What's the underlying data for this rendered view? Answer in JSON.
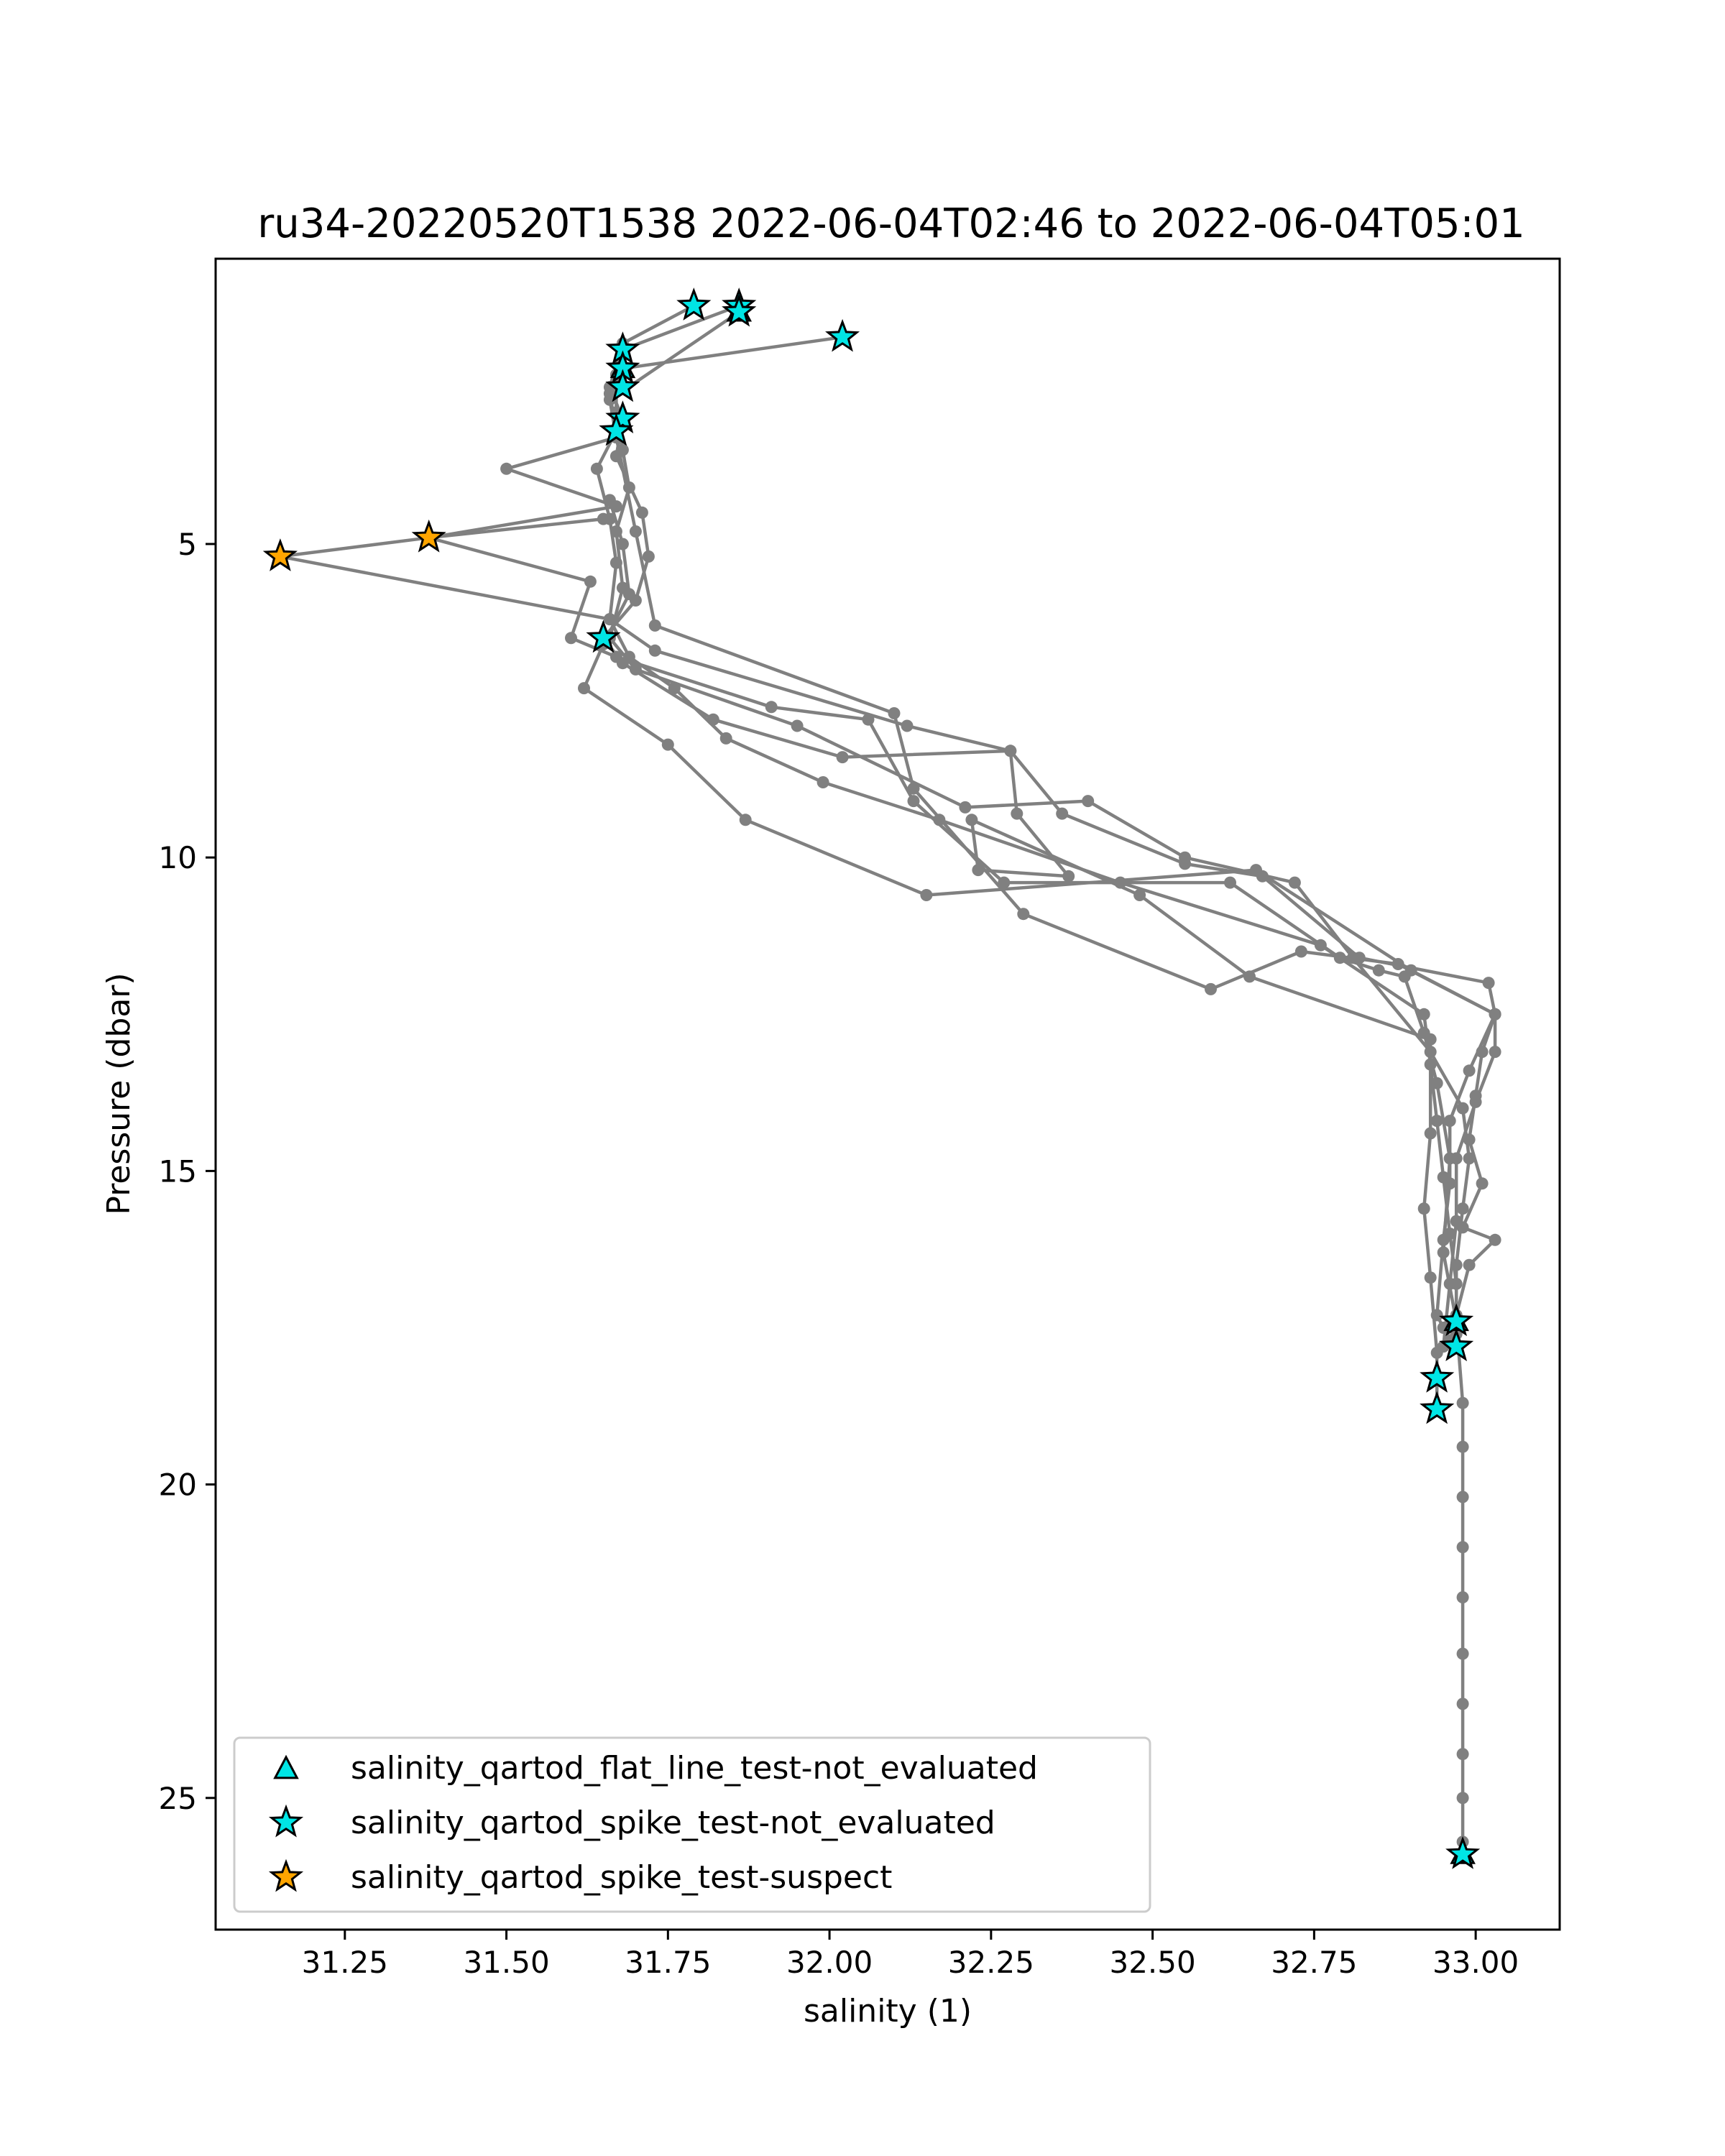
{
  "chart_data": {
    "type": "line",
    "title": "ru34-20220520T1538 2022-06-04T02:46 to 2022-06-04T05:01",
    "xlabel": "salinity (1)",
    "ylabel": "Pressure (dbar)",
    "xlim": [
      31.05,
      33.13
    ],
    "ylim": [
      27.1,
      0.45
    ],
    "y_inverted": true,
    "x_ticks": [
      31.25,
      31.5,
      31.75,
      32.0,
      32.25,
      32.5,
      32.75,
      33.0
    ],
    "x_tick_labels": [
      "31.25",
      "31.50",
      "31.75",
      "32.00",
      "32.25",
      "32.50",
      "32.75",
      "33.00"
    ],
    "y_ticks": [
      5,
      10,
      15,
      20,
      25
    ],
    "y_tick_labels": [
      "5",
      "10",
      "15",
      "20",
      "25"
    ],
    "grid": false,
    "legend_position": "lower-left",
    "line_color": "#808080",
    "series": [
      {
        "name": "",
        "color": "#808080",
        "points": [
          [
            32.02,
            1.7
          ],
          [
            31.68,
            2.2
          ],
          [
            31.66,
            2.6
          ],
          [
            31.67,
            3.2
          ],
          [
            31.64,
            3.8
          ],
          [
            31.66,
            4.6
          ],
          [
            31.67,
            5.3
          ],
          [
            31.66,
            6.2
          ],
          [
            31.69,
            6.8
          ],
          [
            31.76,
            7.3
          ],
          [
            31.84,
            8.1
          ],
          [
            31.99,
            8.8
          ],
          [
            32.17,
            9.4
          ],
          [
            32.45,
            10.4
          ],
          [
            32.76,
            11.4
          ],
          [
            32.92,
            12.5
          ],
          [
            32.93,
            13.3
          ],
          [
            32.94,
            14.2
          ],
          [
            32.95,
            15.1
          ],
          [
            32.96,
            16.0
          ],
          [
            32.97,
            16.8
          ],
          [
            32.97,
            17.8
          ]
        ]
      },
      {
        "name": "",
        "color": "#808080",
        "points": [
          [
            31.86,
            1.2
          ],
          [
            31.68,
            1.9
          ],
          [
            31.67,
            2.3
          ],
          [
            31.67,
            2.9
          ],
          [
            31.68,
            3.5
          ],
          [
            31.69,
            4.1
          ],
          [
            31.67,
            4.8
          ],
          [
            31.68,
            5.7
          ],
          [
            31.66,
            6.5
          ],
          [
            31.7,
            7.0
          ],
          [
            31.95,
            7.9
          ],
          [
            32.21,
            9.2
          ],
          [
            32.4,
            9.1
          ],
          [
            32.55,
            10.0
          ],
          [
            32.72,
            10.4
          ],
          [
            32.81,
            11.6
          ],
          [
            32.93,
            13.1
          ],
          [
            32.98,
            14.0
          ],
          [
            32.99,
            14.8
          ],
          [
            32.98,
            15.6
          ],
          [
            32.97,
            16.5
          ],
          [
            32.97,
            17.5
          ],
          [
            32.96,
            17.7
          ]
        ]
      },
      {
        "name": "",
        "color": "#808080",
        "points": [
          [
            31.79,
            1.2
          ],
          [
            31.68,
            1.8
          ],
          [
            31.66,
            2.5
          ],
          [
            31.68,
            3.0
          ],
          [
            31.67,
            3.6
          ],
          [
            31.71,
            4.5
          ],
          [
            31.72,
            5.2
          ],
          [
            31.7,
            5.9
          ],
          [
            31.65,
            6.5
          ],
          [
            31.68,
            6.9
          ],
          [
            31.82,
            7.8
          ],
          [
            32.02,
            8.4
          ],
          [
            32.28,
            8.3
          ],
          [
            32.29,
            9.3
          ],
          [
            32.37,
            10.3
          ],
          [
            32.23,
            10.2
          ],
          [
            32.22,
            9.4
          ],
          [
            32.48,
            10.6
          ],
          [
            32.65,
            11.9
          ],
          [
            32.93,
            12.9
          ],
          [
            32.93,
            14.4
          ],
          [
            32.92,
            15.6
          ],
          [
            32.93,
            16.7
          ],
          [
            32.94,
            17.9
          ],
          [
            32.94,
            18.3
          ],
          [
            32.94,
            18.8
          ]
        ]
      },
      {
        "name": "",
        "color": "#808080",
        "points": [
          [
            31.86,
            1.3
          ],
          [
            31.66,
            2.7
          ],
          [
            31.67,
            3.3
          ],
          [
            31.5,
            3.8
          ],
          [
            31.67,
            4.4
          ],
          [
            31.38,
            4.9
          ],
          [
            31.63,
            5.6
          ],
          [
            31.6,
            6.5
          ],
          [
            31.67,
            6.8
          ],
          [
            31.91,
            7.6
          ],
          [
            32.06,
            7.8
          ],
          [
            32.13,
            9.1
          ],
          [
            32.27,
            10.4
          ],
          [
            32.62,
            10.4
          ],
          [
            32.79,
            11.6
          ],
          [
            32.85,
            11.8
          ],
          [
            32.89,
            11.9
          ],
          [
            32.92,
            12.8
          ],
          [
            32.94,
            13.6
          ],
          [
            32.96,
            14.8
          ],
          [
            32.95,
            16.3
          ],
          [
            32.97,
            17.4
          ],
          [
            32.98,
            18.7
          ],
          [
            32.98,
            19.4
          ],
          [
            32.98,
            20.2
          ],
          [
            32.98,
            21.0
          ],
          [
            32.98,
            21.8
          ],
          [
            32.98,
            22.7
          ],
          [
            32.98,
            23.5
          ],
          [
            32.98,
            24.3
          ],
          [
            32.98,
            25.0
          ],
          [
            32.98,
            25.7
          ],
          [
            32.98,
            25.9
          ]
        ]
      },
      {
        "name": "",
        "color": "#808080",
        "points": [
          [
            31.65,
            4.6
          ],
          [
            31.38,
            4.9
          ],
          [
            31.15,
            5.2
          ],
          [
            31.66,
            6.2
          ],
          [
            31.73,
            6.7
          ],
          [
            32.12,
            7.9
          ],
          [
            32.28,
            8.3
          ],
          [
            32.36,
            9.3
          ],
          [
            32.55,
            10.1
          ],
          [
            32.67,
            10.3
          ],
          [
            32.82,
            11.6
          ],
          [
            33.02,
            12.0
          ],
          [
            33.03,
            12.5
          ],
          [
            33.01,
            13.1
          ],
          [
            33.0,
            13.8
          ],
          [
            32.99,
            14.5
          ],
          [
            33.01,
            15.2
          ],
          [
            32.98,
            15.9
          ],
          [
            33.03,
            16.1
          ],
          [
            32.99,
            16.5
          ],
          [
            32.97,
            17.3
          ],
          [
            32.97,
            17.6
          ]
        ]
      },
      {
        "name": "",
        "color": "#808080",
        "points": [
          [
            31.67,
            3.3
          ],
          [
            31.7,
            4.8
          ],
          [
            31.73,
            6.3
          ],
          [
            32.1,
            7.7
          ],
          [
            32.13,
            8.9
          ],
          [
            32.3,
            10.9
          ],
          [
            32.59,
            12.1
          ],
          [
            32.73,
            11.5
          ],
          [
            32.88,
            11.7
          ],
          [
            33.03,
            12.5
          ],
          [
            33.03,
            13.1
          ],
          [
            33.0,
            13.9
          ],
          [
            32.97,
            14.8
          ],
          [
            32.97,
            15.8
          ],
          [
            32.96,
            16.8
          ],
          [
            32.95,
            17.8
          ]
        ]
      },
      {
        "name": "",
        "color": "#808080",
        "points": [
          [
            31.66,
            4.3
          ],
          [
            31.68,
            5.0
          ],
          [
            31.69,
            5.8
          ],
          [
            31.65,
            6.6
          ],
          [
            31.62,
            7.3
          ],
          [
            31.75,
            8.2
          ],
          [
            31.87,
            9.4
          ],
          [
            32.15,
            10.6
          ],
          [
            32.66,
            10.2
          ],
          [
            32.9,
            11.8
          ],
          [
            33.03,
            12.5
          ],
          [
            32.99,
            13.4
          ],
          [
            32.96,
            14.2
          ],
          [
            32.96,
            15.2
          ],
          [
            32.95,
            16.1
          ],
          [
            32.94,
            17.3
          ],
          [
            32.95,
            17.5
          ]
        ]
      }
    ],
    "flag_markers": [
      {
        "name": "salinity_qartod_flat_line_test-not_evaluated",
        "shape": "triangle",
        "color": "#00e5e5",
        "points": [
          [
            31.86,
            1.3
          ],
          [
            31.68,
            2.2
          ],
          [
            32.97,
            17.4
          ],
          [
            32.98,
            25.9
          ]
        ]
      },
      {
        "name": "salinity_qartod_spike_test-not_evaluated",
        "shape": "star",
        "color": "#00e5e5",
        "points": [
          [
            31.79,
            1.2
          ],
          [
            31.86,
            1.2
          ],
          [
            31.86,
            1.3
          ],
          [
            32.02,
            1.7
          ],
          [
            31.68,
            1.9
          ],
          [
            31.68,
            2.2
          ],
          [
            31.68,
            2.5
          ],
          [
            31.68,
            3.0
          ],
          [
            31.67,
            3.2
          ],
          [
            31.65,
            6.5
          ],
          [
            32.97,
            17.4
          ],
          [
            32.97,
            17.8
          ],
          [
            32.94,
            18.3
          ],
          [
            32.94,
            18.8
          ],
          [
            32.98,
            25.9
          ]
        ]
      },
      {
        "name": "salinity_qartod_spike_test-suspect",
        "shape": "star",
        "color": "#ffa500",
        "points": [
          [
            31.38,
            4.9
          ],
          [
            31.15,
            5.2
          ]
        ]
      }
    ],
    "legend": [
      {
        "label": "salinity_qartod_flat_line_test-not_evaluated",
        "shape": "triangle",
        "color": "#00e5e5"
      },
      {
        "label": "salinity_qartod_spike_test-not_evaluated",
        "shape": "star",
        "color": "#00e5e5"
      },
      {
        "label": "salinity_qartod_spike_test-suspect",
        "shape": "star",
        "color": "#ffa500"
      }
    ]
  }
}
